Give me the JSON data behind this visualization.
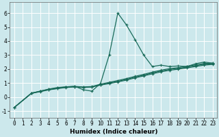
{
  "xlabel": "Humidex (Indice chaleur)",
  "bg_color": "#cce8ec",
  "grid_color": "#ffffff",
  "line_color": "#1a6b5a",
  "xlim": [
    -0.5,
    23.5
  ],
  "ylim": [
    -1.5,
    6.8
  ],
  "yticks": [
    -1,
    0,
    1,
    2,
    3,
    4,
    5,
    6
  ],
  "xticks": [
    0,
    1,
    2,
    3,
    4,
    5,
    6,
    7,
    8,
    9,
    10,
    11,
    12,
    13,
    14,
    15,
    16,
    17,
    18,
    19,
    20,
    21,
    22,
    23
  ],
  "series": [
    {
      "x": [
        0,
        2,
        3,
        4,
        5,
        6,
        7,
        8,
        9,
        10,
        11,
        12,
        13,
        14,
        15,
        16,
        17,
        18,
        19,
        20,
        21,
        22,
        23
      ],
      "y": [
        -0.75,
        0.28,
        0.42,
        0.57,
        0.68,
        0.73,
        0.77,
        0.52,
        0.42,
        0.98,
        3.0,
        6.0,
        5.15,
        4.1,
        3.0,
        2.18,
        2.28,
        2.18,
        2.22,
        2.18,
        2.38,
        2.5,
        2.42
      ]
    },
    {
      "x": [
        0,
        2,
        3,
        4,
        5,
        6,
        7,
        8,
        9,
        10,
        11,
        12,
        13,
        14,
        15,
        16,
        17,
        18,
        19,
        20,
        21,
        22,
        23
      ],
      "y": [
        -0.75,
        0.28,
        0.42,
        0.55,
        0.65,
        0.72,
        0.76,
        0.72,
        0.75,
        0.92,
        1.05,
        1.18,
        1.32,
        1.48,
        1.62,
        1.78,
        1.92,
        2.03,
        2.1,
        2.2,
        2.3,
        2.4,
        2.42
      ]
    },
    {
      "x": [
        0,
        2,
        3,
        4,
        5,
        6,
        7,
        8,
        9,
        10,
        11,
        12,
        13,
        14,
        15,
        16,
        17,
        18,
        19,
        20,
        21,
        22,
        23
      ],
      "y": [
        -0.75,
        0.27,
        0.4,
        0.53,
        0.62,
        0.7,
        0.74,
        0.7,
        0.73,
        0.88,
        1.0,
        1.12,
        1.26,
        1.42,
        1.56,
        1.72,
        1.86,
        1.97,
        2.05,
        2.14,
        2.24,
        2.34,
        2.38
      ]
    },
    {
      "x": [
        0,
        2,
        3,
        4,
        5,
        6,
        7,
        8,
        9,
        10,
        11,
        12,
        13,
        14,
        15,
        16,
        17,
        18,
        19,
        20,
        21,
        22,
        23
      ],
      "y": [
        -0.75,
        0.26,
        0.38,
        0.51,
        0.6,
        0.68,
        0.72,
        0.68,
        0.71,
        0.85,
        0.96,
        1.08,
        1.21,
        1.37,
        1.51,
        1.66,
        1.8,
        1.91,
        1.99,
        2.08,
        2.18,
        2.28,
        2.33
      ]
    }
  ],
  "marker": "+",
  "markersize": 3.5,
  "linewidth": 0.9,
  "label_fontsize": 6.5,
  "tick_fontsize": 5.5
}
